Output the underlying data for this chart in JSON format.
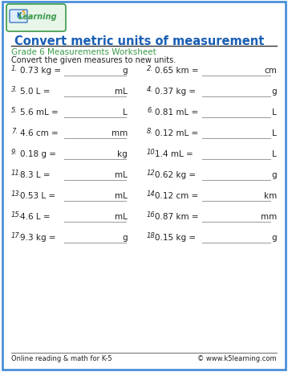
{
  "title": "Convert metric units of measurement",
  "subtitle": "Grade 6 Measurements Worksheet",
  "instruction": "Convert the given measures to new units.",
  "border_color": "#4a90d9",
  "title_color": "#1a5fb4",
  "subtitle_color": "#3a9a4a",
  "problems": [
    {
      "num": "1.",
      "left": "0.73 kg =",
      "left_unit": "g",
      "right_num": "2.",
      "right": "0.65 km =",
      "right_unit": "cm"
    },
    {
      "num": "3.",
      "left": "5.0 L =",
      "left_unit": "mL",
      "right_num": "4.",
      "right": "0.37 kg =",
      "right_unit": "g"
    },
    {
      "num": "5.",
      "left": "5.6 mL =",
      "left_unit": "L",
      "right_num": "6.",
      "right": "0.81 mL =",
      "right_unit": "L"
    },
    {
      "num": "7.",
      "left": "4.6 cm =",
      "left_unit": "mm",
      "right_num": "8.",
      "right": "0.12 mL =",
      "right_unit": "L"
    },
    {
      "num": "9.",
      "left": "0.18 g =",
      "left_unit": "kg",
      "right_num": "10.",
      "right": "1.4 mL =",
      "right_unit": "L"
    },
    {
      "num": "11.",
      "left": "8.3 L =",
      "left_unit": "mL",
      "right_num": "12.",
      "right": "0.62 kg =",
      "right_unit": "g"
    },
    {
      "num": "13.",
      "left": "0.53 L =",
      "left_unit": "mL",
      "right_num": "14.",
      "right": "0.12 cm =",
      "right_unit": "km"
    },
    {
      "num": "15.",
      "left": "4.6 L =",
      "left_unit": "mL",
      "right_num": "16.",
      "right": "0.87 km =",
      "right_unit": "mm"
    },
    {
      "num": "17.",
      "left": "9.3 kg =",
      "left_unit": "g",
      "right_num": "18.",
      "right": "0.15 kg =",
      "right_unit": "g"
    }
  ],
  "footer_left": "Online reading & math for K-5",
  "footer_right": "© www.k5learning.com",
  "bg_color": "#ffffff",
  "text_color": "#222222",
  "line_color": "#999999"
}
